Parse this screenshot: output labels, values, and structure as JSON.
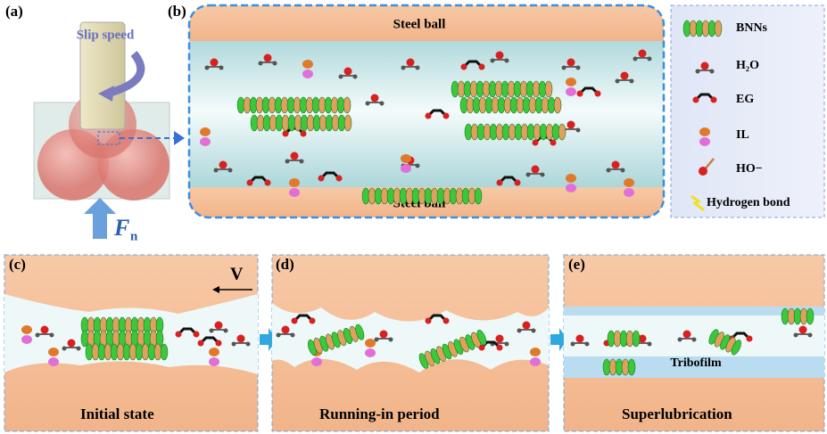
{
  "panel_a": {
    "label": "(a)",
    "slip_speed": "Slip speed",
    "force": {
      "symbol": "F",
      "subscript": "n"
    }
  },
  "panel_b": {
    "label": "(b)",
    "top": "Steel ball",
    "bottom": "Steel ball"
  },
  "legend": {
    "items": [
      "BNNs",
      "H₂O",
      "EG",
      "IL",
      "HO−",
      "Hydrogen bond"
    ]
  },
  "panel_c": {
    "label": "(c)",
    "velocity": "V",
    "caption": "Initial state"
  },
  "panel_d": {
    "label": "(d)",
    "caption": "Running-in period"
  },
  "panel_e": {
    "label": "(e)",
    "caption": "Superlubrication",
    "tribofilm": "Tribofilm"
  }
}
